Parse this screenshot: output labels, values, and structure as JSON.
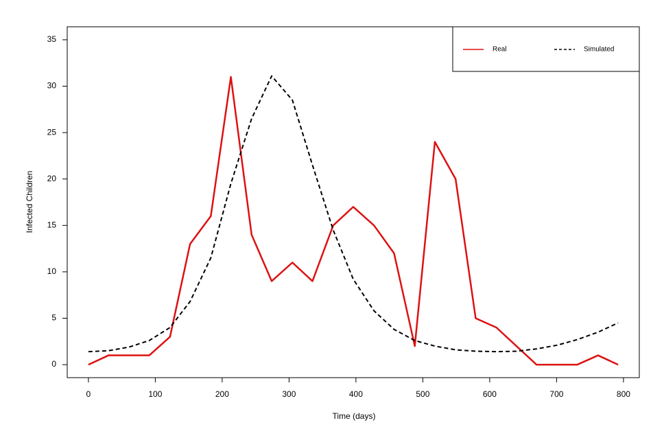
{
  "chart_data": {
    "type": "line",
    "x_label": "Time (days)",
    "y_label": "Infected Children",
    "x": [
      0,
      30,
      61,
      91,
      122,
      152,
      183,
      213,
      244,
      274,
      305,
      335,
      366,
      396,
      427,
      457,
      488,
      518,
      549,
      579,
      610,
      640,
      670,
      701,
      731,
      762,
      792
    ],
    "series": [
      {
        "name": "Real",
        "color": "#dd1111",
        "dash": false,
        "values": [
          0,
          1,
          1,
          1,
          3,
          13,
          16,
          31,
          14,
          9,
          11,
          9,
          15,
          17,
          15,
          12,
          2,
          24,
          20,
          5,
          4,
          2,
          0,
          0,
          0,
          1,
          0
        ]
      },
      {
        "name": "Simulated",
        "color": "#000000",
        "dash": true,
        "values": [
          1.4,
          1.5,
          1.9,
          2.6,
          4.0,
          6.8,
          11.5,
          19.5,
          26.5,
          31.1,
          28.5,
          21.5,
          14.5,
          9.2,
          5.8,
          3.8,
          2.6,
          2.0,
          1.6,
          1.45,
          1.4,
          1.45,
          1.7,
          2.1,
          2.7,
          3.5,
          4.5
        ]
      }
    ],
    "xlim": [
      -31.68,
      823.68
    ],
    "ylim": [
      -1.4,
      36.4
    ],
    "xticks": [
      0,
      100,
      200,
      300,
      400,
      500,
      600,
      700,
      800
    ],
    "yticks": [
      0,
      5,
      10,
      15,
      20,
      25,
      30,
      35
    ],
    "legend": "top-right"
  }
}
